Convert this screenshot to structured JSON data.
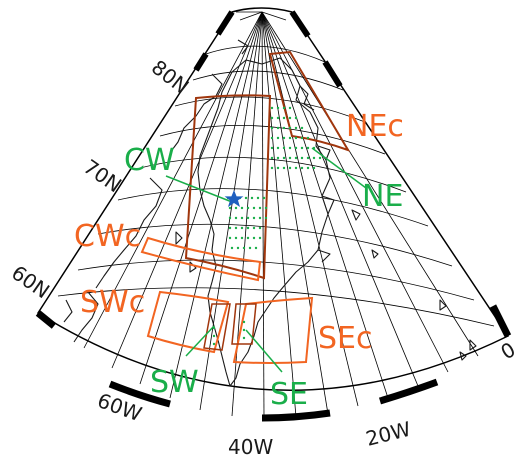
{
  "colors": {
    "frame": "#000000",
    "graticule": "#000000",
    "coastline": "#1a1a1a",
    "orange": "#f26522",
    "green": "#1aae4a",
    "dark_red": "#a0360d",
    "blue": "#1f5fbf"
  },
  "lat_labels": {
    "lat80": "80N",
    "lat70": "70N",
    "lat60": "60N"
  },
  "lon_labels": {
    "lon60": "60W",
    "lon40": "40W",
    "lon20": "20W",
    "lon0": "0"
  },
  "regions": {
    "nec": "NEc",
    "ne": "NE",
    "cw": "CW",
    "cwc": "CWc",
    "swc": "SWc",
    "sw": "SW",
    "se": "SE",
    "sec": "SEc"
  },
  "markers": {
    "star": "star-icon"
  }
}
